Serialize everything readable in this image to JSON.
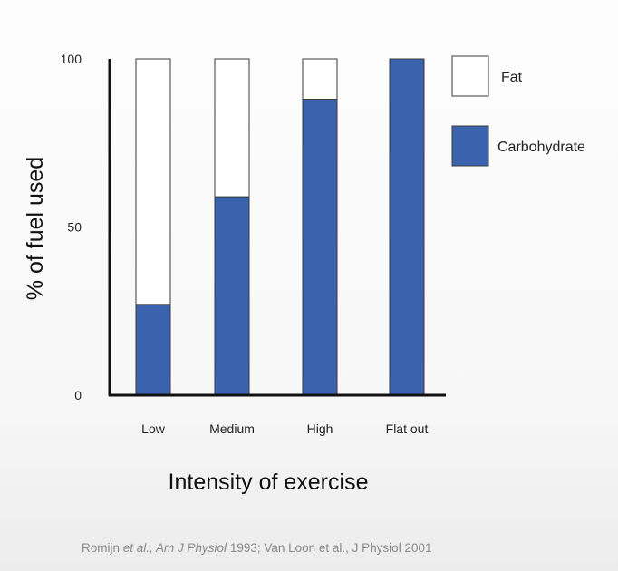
{
  "chart_data": {
    "type": "bar",
    "stacked": true,
    "categories": [
      "Low",
      "Medium",
      "High",
      "Flat out"
    ],
    "series": [
      {
        "name": "Carbohydrate",
        "values": [
          27,
          59,
          88,
          100
        ],
        "color": "#3b63ad"
      },
      {
        "name": "Fat",
        "values": [
          73,
          41,
          12,
          0
        ],
        "color": "#ffffff"
      }
    ],
    "xlabel": "Intensity of exercise",
    "ylabel": "% of fuel used",
    "ylim": [
      0,
      100
    ],
    "yticks": [
      0,
      50,
      100
    ],
    "grid": false,
    "legend": {
      "position": "right",
      "entries": [
        {
          "label": "Fat",
          "color": "#ffffff"
        },
        {
          "label": "Carbohydrate",
          "color": "#3b63ad"
        }
      ]
    }
  },
  "citation": {
    "part1": "Romijn ",
    "part2_italic": "et al., Am J Physiol",
    "part3": " 1993; Van Loon et al., J Physiol 2001"
  }
}
